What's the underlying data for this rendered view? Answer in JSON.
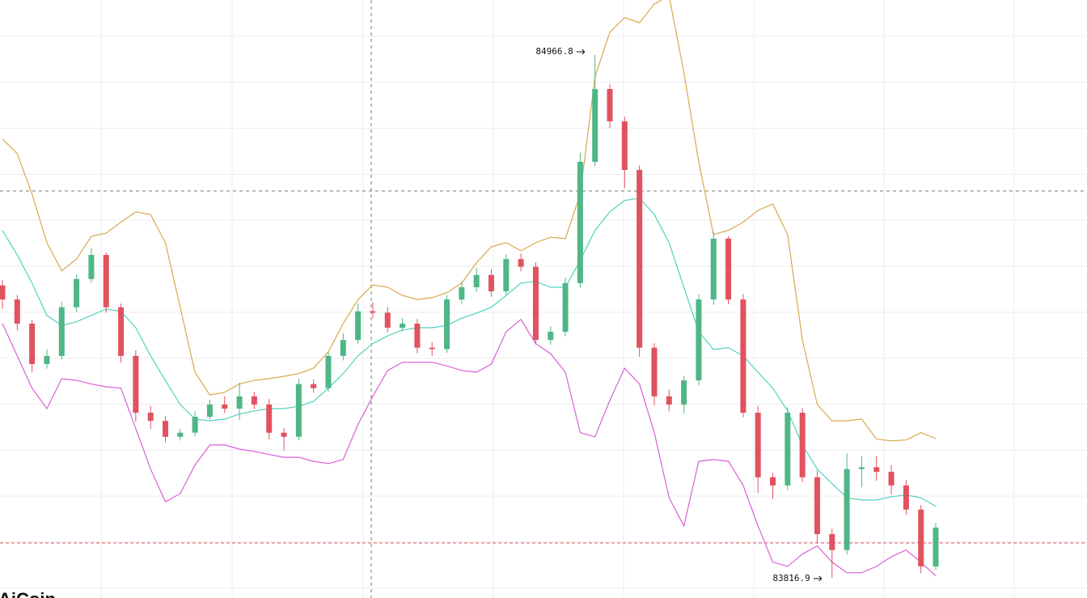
{
  "chart_data": {
    "type": "candlestick",
    "watermark": "AiCoin",
    "up_color": "#4fb686",
    "down_color": "#e0525f",
    "open": [
      84460,
      84429,
      84376,
      84287,
      84305,
      84412,
      84474,
      84527,
      84412,
      84305,
      84180,
      84162,
      84127,
      84136,
      84171,
      84198,
      84189,
      84216,
      84198,
      84136,
      84127,
      84243,
      84234,
      84305,
      84340,
      84403,
      84400,
      84367,
      84376,
      84323,
      84320,
      84429,
      84456,
      84483,
      84447,
      84518,
      84501,
      84340,
      84358,
      84465,
      84732,
      84892,
      84821,
      84714,
      84323,
      84216,
      84198,
      84251,
      84429,
      84563,
      84429,
      84180,
      84038,
      84020,
      84180,
      84038,
      83913,
      83878,
      84056,
      84060,
      84050,
      84020,
      83967,
      83842
    ],
    "high": [
      84472,
      84439,
      84384,
      84320,
      84424,
      84484,
      84542,
      84532,
      84420,
      84317,
      84195,
      84172,
      84145,
      84183,
      84208,
      84216,
      84246,
      84226,
      84210,
      84146,
      84255,
      84253,
      84315,
      84355,
      84421,
      84423,
      84412,
      84388,
      84386,
      84335,
      84439,
      84468,
      84498,
      84495,
      84528,
      84530,
      84511,
      84370,
      84477,
      84752,
      84966.8,
      84902,
      84831,
      84724,
      84333,
      84231,
      84261,
      84441,
      84578,
      84568,
      84441,
      84195,
      84048,
      84192,
      84190,
      84053,
      83925,
      84091,
      84085,
      84085,
      84065,
      84032,
      83977,
      83937
    ],
    "low": [
      84409,
      84361,
      84269,
      84277,
      84297,
      84402,
      84466,
      84400,
      84290,
      84160,
      84144,
      84115,
      84119,
      84128,
      84165,
      84179,
      84164,
      84188,
      84121,
      84097,
      84119,
      84224,
      84226,
      84295,
      84332,
      84388,
      84357,
      84359,
      84311,
      84305,
      84312,
      84419,
      84446,
      84435,
      84439,
      84491,
      84330,
      84330,
      84348,
      84455,
      84722,
      84806,
      84674,
      84303,
      84196,
      84183,
      84178,
      84241,
      84417,
      84419,
      84170,
      84003,
      83990,
      84010,
      84028,
      83893,
      83816.9,
      83868,
      84016,
      84030,
      84000,
      83955,
      83827,
      83834
    ],
    "close": [
      84429,
      84376,
      84287,
      84305,
      84412,
      84474,
      84527,
      84412,
      84305,
      84180,
      84162,
      84127,
      84136,
      84171,
      84198,
      84189,
      84216,
      84198,
      84136,
      84127,
      84243,
      84234,
      84305,
      84340,
      84403,
      84400,
      84367,
      84376,
      84323,
      84320,
      84429,
      84456,
      84483,
      84447,
      84518,
      84501,
      84340,
      84358,
      84465,
      84732,
      84892,
      84821,
      84714,
      84323,
      84216,
      84198,
      84251,
      84429,
      84563,
      84429,
      84180,
      84038,
      84020,
      84180,
      84038,
      83913,
      83878,
      84056,
      84060,
      84050,
      84020,
      83967,
      83842,
      83927
    ],
    "bands": [
      {
        "color": "#d7a94c",
        "values": [
          84782,
          84750,
          84661,
          84554,
          84492,
          84518,
          84568,
          84575,
          84599,
          84622,
          84616,
          84554,
          84412,
          84269,
          84219,
          84225,
          84243,
          84251,
          84255,
          84260,
          84266,
          84278,
          84314,
          84376,
          84429,
          84461,
          84456,
          84438,
          84429,
          84433,
          84444,
          84465,
          84510,
          84545,
          84554,
          84536,
          84554,
          84566,
          84563,
          84661,
          84919,
          85017,
          85049,
          85038,
          85079,
          85097,
          84928,
          84732,
          84572,
          84581,
          84599,
          84625,
          84639,
          84572,
          84340,
          84198,
          84162,
          84162,
          84166,
          84122,
          84118,
          84120,
          84136,
          84123
        ]
      },
      {
        "color": "#4fd3bf",
        "values": [
          84581,
          84527,
          84465,
          84394,
          84372,
          84380,
          84394,
          84408,
          84403,
          84367,
          84305,
          84251,
          84198,
          84166,
          84162,
          84166,
          84177,
          84184,
          84189,
          84189,
          84194,
          84205,
          84234,
          84266,
          84305,
          84332,
          84349,
          84362,
          84367,
          84367,
          84372,
          84388,
          84399,
          84412,
          84438,
          84465,
          84469,
          84456,
          84456,
          84515,
          84581,
          84622,
          84647,
          84652,
          84616,
          84554,
          84456,
          84358,
          84319,
          84323,
          84305,
          84269,
          84234,
          84184,
          84109,
          84056,
          84024,
          83993,
          83988,
          83988,
          83995,
          83999,
          83993,
          83974
        ]
      },
      {
        "color": "#d95fd6",
        "values": [
          84376,
          84305,
          84234,
          84189,
          84255,
          84251,
          84243,
          84237,
          84234,
          84145,
          84056,
          83984,
          84002,
          84065,
          84109,
          84109,
          84100,
          84095,
          84088,
          84082,
          84082,
          84073,
          84068,
          84077,
          84154,
          84216,
          84273,
          84291,
          84291,
          84291,
          84283,
          84273,
          84269,
          84287,
          84358,
          84385,
          84332,
          84310,
          84269,
          84136,
          84127,
          84207,
          84278,
          84243,
          84136,
          83993,
          83931,
          84073,
          84077,
          84073,
          84020,
          83931,
          83851,
          83842,
          83869,
          83887,
          83851,
          83828,
          83828,
          83842,
          83863,
          83878,
          83851,
          83821
        ]
      }
    ]
  }
}
